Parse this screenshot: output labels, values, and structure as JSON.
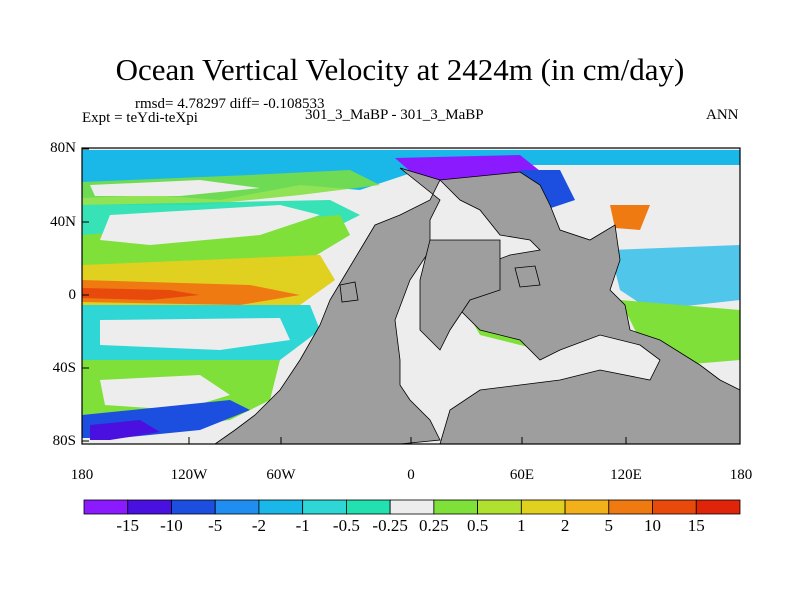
{
  "title": "Ocean Vertical Velocity at 2424m (in cm/day)",
  "stats": "rmsd= 4.78297 diff= -0.108533",
  "expt": "Expt = teYdi-teXpi",
  "center_label": "301_3_MaBP - 301_3_MaBP",
  "season": "ANN",
  "lat_labels": [
    "80N",
    "40N",
    "0",
    "40S",
    "80S"
  ],
  "lon_labels": [
    "180",
    "120W",
    "60W",
    "0",
    "60E",
    "120E",
    "180"
  ],
  "colorbar": {
    "labels": [
      "-15",
      "-10",
      "-5",
      "-2",
      "-1",
      "-0.5",
      "-0.25",
      "0.25",
      "0.5",
      "1",
      "2",
      "5",
      "10",
      "15"
    ],
    "colors": [
      "#8c1aff",
      "#4a10e0",
      "#1c4fe0",
      "#1f8ef0",
      "#19b8e8",
      "#2fd6d6",
      "#22e0b0",
      "#ededed",
      "#7fe03a",
      "#b0e030",
      "#e0d020",
      "#f2b01a",
      "#f07a12",
      "#e84a0c",
      "#e0240a"
    ]
  },
  "colors": {
    "land": "#9e9e9e",
    "ocean_neutral": "#ededed"
  }
}
